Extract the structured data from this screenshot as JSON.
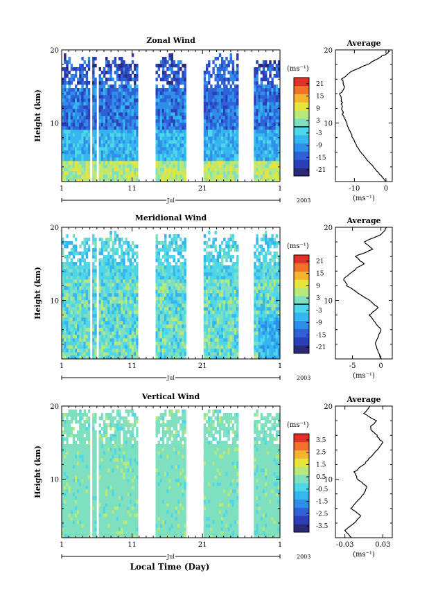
{
  "figure": {
    "x_axis_title": "Local Time (Day)",
    "colorbar_unit": "(ms⁻¹)",
    "average_unit": "(ms⁻¹)",
    "average_title": "Average",
    "y_axis_title": "Height (km)",
    "year_label": "2003",
    "month_label": "Jul"
  },
  "colormap": [
    "#2a2a78",
    "#2c3fb8",
    "#2f62d8",
    "#2f8fe8",
    "#35b6f0",
    "#4fd6e8",
    "#7fe0c0",
    "#b6e87a",
    "#e8e43c",
    "#f5b330",
    "#f2702a",
    "#e23028"
  ],
  "chart_data": [
    {
      "type": "heatmap",
      "title": "Zonal Wind",
      "ylabel": "Height (km)",
      "ylim": [
        2,
        20
      ],
      "y_ticks": [
        "20",
        "10"
      ],
      "x_ticks": [
        "1",
        "11",
        "21",
        "1"
      ],
      "x_range_days": [
        1,
        32
      ],
      "month": "Jul",
      "year": "2003",
      "colorbar": {
        "min": -24,
        "max": 24,
        "tick_labels": [
          "21",
          "15",
          "9",
          "3",
          "-3",
          "-9",
          "-15",
          "-21"
        ],
        "zero_line": 0
      },
      "data_gaps_days": [
        [
          5.1,
          5.4
        ],
        [
          6.1,
          6.4
        ],
        [
          11.8,
          14.2
        ],
        [
          18.6,
          21.0
        ],
        [
          26.2,
          28.3
        ]
      ],
      "average_profile": {
        "title": "Average",
        "xlabel": "(ms⁻¹)",
        "x_ticks": [
          "-10",
          "0"
        ],
        "xlim": [
          -16,
          2
        ],
        "y_ticks": [
          "20",
          "10"
        ],
        "height_km": [
          2,
          3,
          4,
          5,
          6,
          7,
          8,
          9,
          10,
          11,
          12,
          13,
          14,
          15,
          16,
          17,
          18,
          19,
          19.5,
          20
        ],
        "value_ms": [
          0,
          -2,
          -4,
          -6,
          -8,
          -9.5,
          -10.5,
          -11.5,
          -12.5,
          -13.5,
          -14,
          -14,
          -14.5,
          -13,
          -14,
          -11,
          -6,
          -2,
          0.5,
          1
        ]
      }
    },
    {
      "type": "heatmap",
      "title": "Meridional Wind",
      "ylabel": "Height (km)",
      "ylim": [
        2,
        20
      ],
      "y_ticks": [
        "20",
        "10"
      ],
      "x_ticks": [
        "1",
        "11",
        "21",
        "1"
      ],
      "x_range_days": [
        1,
        32
      ],
      "month": "Jul",
      "year": "2003",
      "colorbar": {
        "min": -24,
        "max": 24,
        "tick_labels": [
          "21",
          "15",
          "9",
          "3",
          "-3",
          "-9",
          "-15",
          "-21"
        ],
        "zero_line": 0
      },
      "data_gaps_days": [
        [
          5.1,
          5.4
        ],
        [
          6.1,
          6.4
        ],
        [
          11.8,
          14.2
        ],
        [
          18.6,
          21.0
        ],
        [
          26.2,
          28.3
        ]
      ],
      "average_profile": {
        "title": "Average",
        "xlabel": "(ms⁻¹)",
        "x_ticks": [
          "-5",
          "0"
        ],
        "xlim": [
          -8,
          2
        ],
        "y_ticks": [
          "20",
          "10"
        ],
        "height_km": [
          2,
          3,
          4,
          5,
          6,
          7,
          8,
          9,
          10,
          11,
          12,
          13,
          14,
          15,
          16,
          17,
          18,
          19,
          20
        ],
        "value_ms": [
          0,
          -0.5,
          -1,
          -0.5,
          0,
          -1,
          -2,
          -0.5,
          -2,
          -4,
          -6,
          -6.5,
          -5,
          -3,
          -4.5,
          -1.5,
          -3,
          0,
          1
        ]
      }
    },
    {
      "type": "heatmap",
      "title": "Vertical Wind",
      "ylabel": "Height (km)",
      "ylim": [
        2,
        20
      ],
      "y_ticks": [
        "20",
        "10"
      ],
      "x_ticks": [
        "1",
        "11",
        "21",
        "1"
      ],
      "x_range_days": [
        1,
        32
      ],
      "month": "Jul",
      "year": "2003",
      "xlabel": "Local Time (Day)",
      "colorbar": {
        "min": -4,
        "max": 4,
        "tick_labels": [
          "3.5",
          "2.5",
          "1.5",
          "0.5",
          "-0.5",
          "-1.5",
          "-2.5",
          "-3.5"
        ],
        "zero_line": null
      },
      "data_gaps_days": [
        [
          5.1,
          5.4
        ],
        [
          6.1,
          6.4
        ],
        [
          11.8,
          14.2
        ],
        [
          18.6,
          21.0
        ],
        [
          26.2,
          28.3
        ]
      ],
      "average_profile": {
        "title": "Average",
        "xlabel": "(ms⁻¹)",
        "x_ticks": [
          "-0.03",
          "0.03"
        ],
        "xlim": [
          -0.045,
          0.045
        ],
        "y_ticks": [
          "20",
          "10"
        ],
        "height_km": [
          2,
          3,
          4,
          5,
          6,
          7,
          8,
          9,
          10,
          11,
          12,
          13,
          14,
          15,
          16,
          17,
          18,
          19,
          20
        ],
        "value_ms": [
          -0.02,
          -0.03,
          -0.015,
          -0.005,
          -0.02,
          -0.01,
          0,
          0.005,
          -0.01,
          -0.015,
          0.0,
          0.01,
          0.02,
          0.03,
          0.02,
          0.01,
          0.02,
          0.0,
          0.01
        ]
      }
    }
  ]
}
